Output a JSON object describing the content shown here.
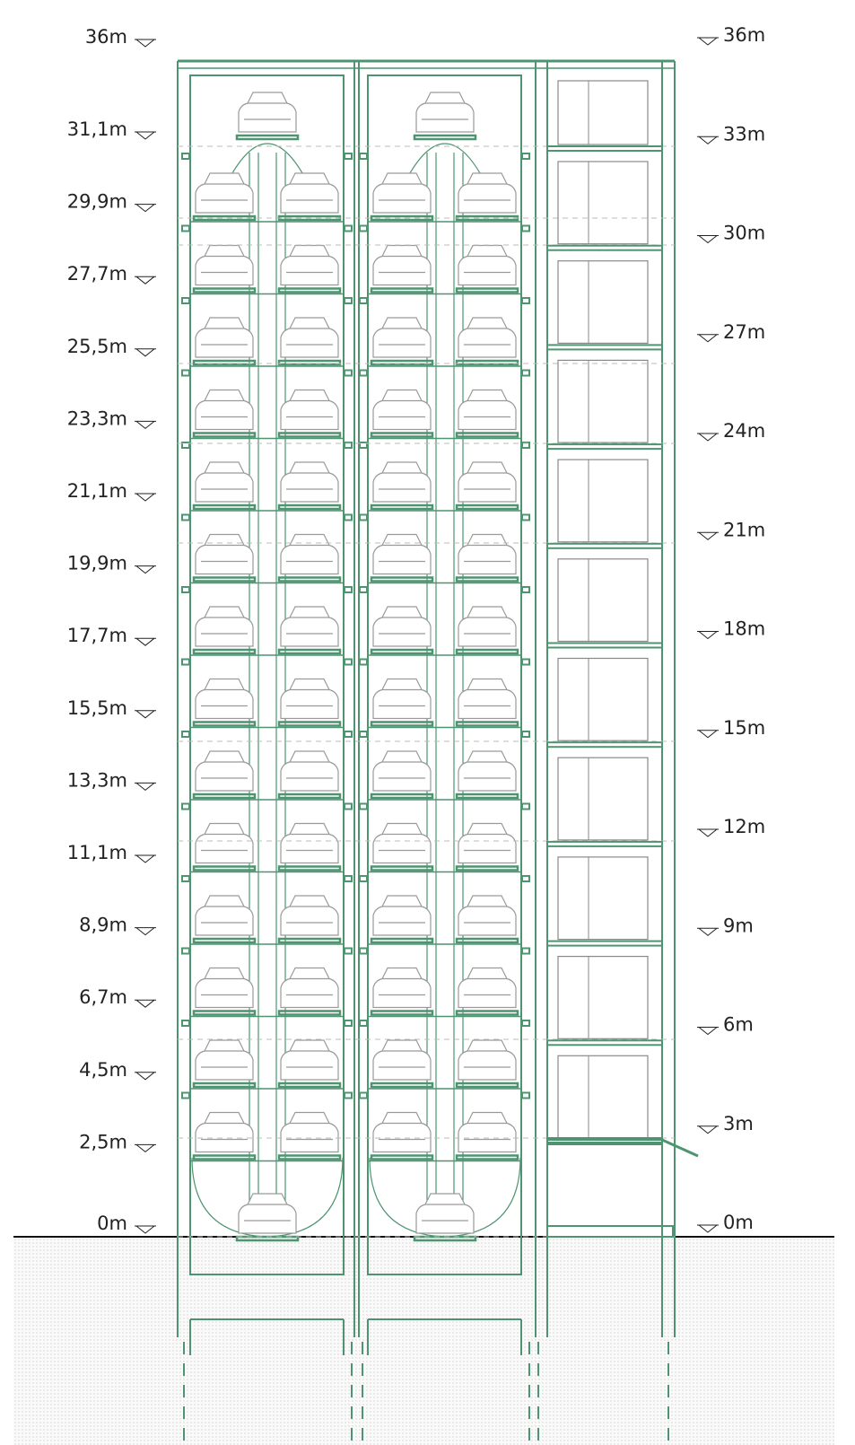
{
  "left_levels": [
    "36m",
    "31,1m",
    "29,9m",
    "27,7m",
    "25,5m",
    "23,3m",
    "21,1m",
    "19,9m",
    "17,7m",
    "15,5m",
    "13,3m",
    "11,1m",
    "8,9m",
    "6,7m",
    "4,5m",
    "2,5m",
    "0m"
  ],
  "right_levels": [
    "36m",
    "33m",
    "30m",
    "27m",
    "24m",
    "21m",
    "18m",
    "15m",
    "12m",
    "9m",
    "6m",
    "3m",
    "0m"
  ]
}
